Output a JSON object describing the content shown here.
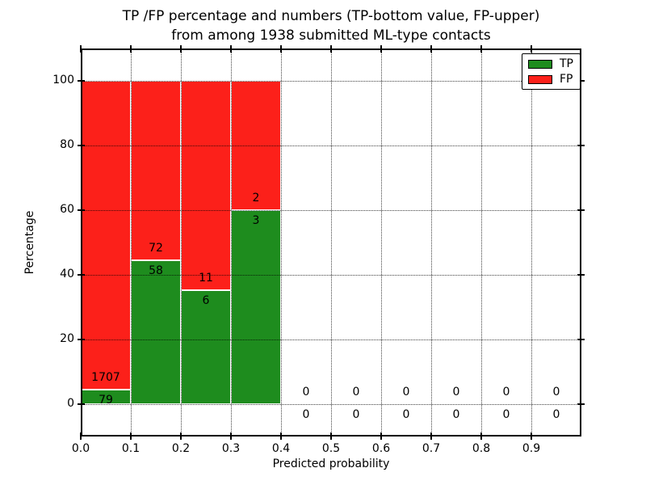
{
  "chart_data": {
    "type": "bar",
    "stacked": true,
    "normalized": "percent",
    "title": "TP /FP percentage and numbers (TP-bottom value, FP-upper)",
    "subtitle": "from among 1938 submitted ML-type contacts",
    "xlabel": "Predicted probability",
    "ylabel": "Percentage",
    "total_contacts": 1938,
    "xlim": [
      0.0,
      1.0
    ],
    "ylim": [
      -10,
      110
    ],
    "grid": "dotted",
    "xticks": [
      {
        "v": 0.0,
        "label": "0.0"
      },
      {
        "v": 0.1,
        "label": "0.1"
      },
      {
        "v": 0.2,
        "label": "0.2"
      },
      {
        "v": 0.3,
        "label": "0.3"
      },
      {
        "v": 0.4,
        "label": "0.4"
      },
      {
        "v": 0.5,
        "label": "0.5"
      },
      {
        "v": 0.6,
        "label": "0.6"
      },
      {
        "v": 0.7,
        "label": "0.7"
      },
      {
        "v": 0.8,
        "label": "0.8"
      },
      {
        "v": 0.9,
        "label": "0.9"
      }
    ],
    "yticks": [
      {
        "v": 0,
        "label": "0"
      },
      {
        "v": 20,
        "label": "20"
      },
      {
        "v": 40,
        "label": "40"
      },
      {
        "v": 60,
        "label": "60"
      },
      {
        "v": 80,
        "label": "80"
      },
      {
        "v": 100,
        "label": "100"
      }
    ],
    "legend": {
      "position": "upper right",
      "entries": [
        {
          "label": "TP",
          "color": "#1e8c1e"
        },
        {
          "label": "FP",
          "color": "#fc201a"
        }
      ]
    },
    "colors": {
      "tp": "#1e8c1e",
      "fp": "#fc201a"
    },
    "bins": [
      {
        "x0": 0.0,
        "x1": 0.1,
        "tp": 79,
        "fp": 1707,
        "tp_pct": 4.42,
        "fp_pct": 95.58
      },
      {
        "x0": 0.1,
        "x1": 0.2,
        "tp": 58,
        "fp": 72,
        "tp_pct": 44.62,
        "fp_pct": 55.38
      },
      {
        "x0": 0.2,
        "x1": 0.3,
        "tp": 6,
        "fp": 11,
        "tp_pct": 35.29,
        "fp_pct": 64.71
      },
      {
        "x0": 0.3,
        "x1": 0.4,
        "tp": 3,
        "fp": 2,
        "tp_pct": 60.0,
        "fp_pct": 40.0
      },
      {
        "x0": 0.4,
        "x1": 0.5,
        "tp": 0,
        "fp": 0,
        "tp_pct": 0,
        "fp_pct": 0
      },
      {
        "x0": 0.5,
        "x1": 0.6,
        "tp": 0,
        "fp": 0,
        "tp_pct": 0,
        "fp_pct": 0
      },
      {
        "x0": 0.6,
        "x1": 0.7,
        "tp": 0,
        "fp": 0,
        "tp_pct": 0,
        "fp_pct": 0
      },
      {
        "x0": 0.7,
        "x1": 0.8,
        "tp": 0,
        "fp": 0,
        "tp_pct": 0,
        "fp_pct": 0
      },
      {
        "x0": 0.8,
        "x1": 0.9,
        "tp": 0,
        "fp": 0,
        "tp_pct": 0,
        "fp_pct": 0
      },
      {
        "x0": 0.9,
        "x1": 1.0,
        "tp": 0,
        "fp": 0,
        "tp_pct": 0,
        "fp_pct": 0
      }
    ]
  }
}
